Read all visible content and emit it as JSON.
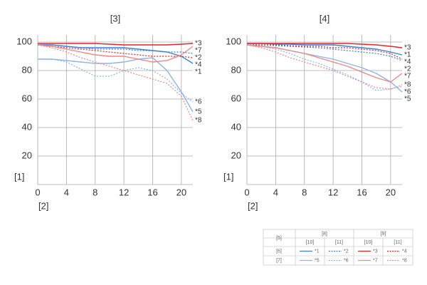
{
  "chart_data": [
    {
      "type": "line",
      "title": "[3]",
      "x_label": "[2]",
      "y_label": "[1]",
      "x": [
        0,
        2,
        4,
        6,
        8,
        10,
        12,
        14,
        16,
        18,
        20,
        21.6
      ],
      "xlim": [
        0,
        21.6
      ],
      "xticks": [
        0,
        4,
        8,
        12,
        16,
        20
      ],
      "ylim": [
        0,
        100
      ],
      "yticks": [
        20,
        40,
        60,
        80,
        100
      ],
      "grid": true,
      "series": [
        {
          "name": "*1",
          "color": "#3f7fd9",
          "dash": false,
          "values": [
            98,
            98,
            97,
            96,
            96,
            96,
            96,
            95,
            94,
            93,
            90,
            85
          ]
        },
        {
          "name": "*2",
          "color": "#3f7fd9",
          "dash": true,
          "values": [
            98,
            98,
            97,
            96,
            95,
            95,
            95,
            94,
            94,
            93,
            93,
            92
          ]
        },
        {
          "name": "*3",
          "color": "#e0262b",
          "dash": false,
          "values": [
            99,
            99,
            99,
            99,
            99,
            98.5,
            98,
            98,
            98,
            98,
            98.5,
            99
          ]
        },
        {
          "name": "*4",
          "color": "#e0262b",
          "dash": true,
          "values": [
            98,
            97,
            96,
            95,
            94,
            93,
            92,
            91,
            90,
            90,
            90,
            89
          ]
        },
        {
          "name": "*5",
          "color": "#8db3ec",
          "dash": false,
          "values": [
            88,
            88,
            87,
            86,
            85,
            85,
            86,
            88,
            89,
            80,
            65,
            51
          ]
        },
        {
          "name": "*6",
          "color": "#8db3ec",
          "dash": true,
          "values": [
            88,
            88,
            86,
            81,
            76,
            76,
            80,
            82,
            80,
            74,
            64,
            58
          ]
        },
        {
          "name": "*7",
          "color": "#f08585",
          "dash": false,
          "values": [
            98,
            97,
            95,
            93,
            91,
            90,
            90,
            88,
            86,
            87,
            91,
            97
          ]
        },
        {
          "name": "*8",
          "color": "#f08585",
          "dash": true,
          "values": [
            98,
            96,
            93,
            89,
            86,
            83,
            80,
            77,
            74,
            71,
            62,
            45
          ]
        }
      ]
    },
    {
      "type": "line",
      "title": "[4]",
      "x_label": "[2]",
      "y_label": "[1]",
      "x": [
        0,
        2,
        4,
        6,
        8,
        10,
        12,
        14,
        16,
        18,
        20,
        21.6
      ],
      "xlim": [
        0,
        21.6
      ],
      "xticks": [
        0,
        4,
        8,
        12,
        16,
        20
      ],
      "ylim": [
        0,
        100
      ],
      "yticks": [
        20,
        40,
        60,
        80,
        100
      ],
      "grid": true,
      "series": [
        {
          "name": "*1",
          "color": "#3f7fd9",
          "dash": false,
          "values": [
            99,
            99,
            98.5,
            98.5,
            98,
            98,
            98,
            97,
            96,
            95,
            93,
            91
          ]
        },
        {
          "name": "*2",
          "color": "#3f7fd9",
          "dash": true,
          "values": [
            98,
            98,
            97.5,
            97,
            96.5,
            96,
            95,
            94,
            93,
            92,
            90,
            87
          ]
        },
        {
          "name": "*3",
          "color": "#e0262b",
          "dash": false,
          "values": [
            99,
            99,
            99,
            99,
            99,
            99,
            99,
            99,
            98.5,
            98,
            97,
            96
          ]
        },
        {
          "name": "*4",
          "color": "#e0262b",
          "dash": true,
          "values": [
            98,
            98,
            98,
            97.5,
            97,
            97,
            96,
            96,
            95,
            94,
            92,
            88
          ]
        },
        {
          "name": "*5",
          "color": "#8db3ec",
          "dash": false,
          "values": [
            98,
            97,
            96,
            94,
            92,
            90,
            88,
            85,
            82,
            78,
            72,
            65
          ]
        },
        {
          "name": "*6",
          "color": "#8db3ec",
          "dash": true,
          "values": [
            98,
            97,
            95,
            92,
            88,
            85,
            81,
            77,
            72,
            66,
            67,
            69
          ]
        },
        {
          "name": "*7",
          "color": "#f08585",
          "dash": false,
          "values": [
            98,
            97,
            96,
            94,
            92,
            89,
            86,
            83,
            79,
            75,
            72,
            78
          ]
        },
        {
          "name": "*8",
          "color": "#f08585",
          "dash": true,
          "values": [
            98,
            96,
            93,
            89,
            86,
            83,
            80,
            76,
            72,
            68,
            67,
            70
          ]
        }
      ]
    }
  ],
  "legend_table": {
    "corner": "[5]",
    "groups": [
      "[8]",
      "[9]"
    ],
    "columns": [
      "[10]",
      "[11]"
    ],
    "rows": [
      "[6]",
      "[7]"
    ]
  }
}
